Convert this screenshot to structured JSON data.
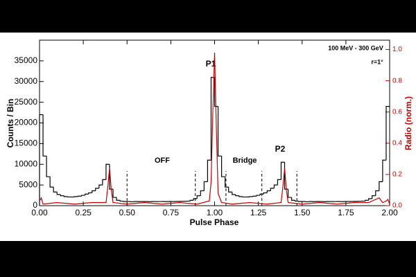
{
  "chart_data": {
    "type": "histogram",
    "x_label": "Pulse Phase",
    "y_label": "Counts / Bin",
    "y2_label": "Radio (norm.)",
    "annotations": [
      "100 MeV - 300 GeV",
      "r=1°",
      "P1",
      "P2",
      "OFF",
      "Bridge"
    ],
    "xlim": [
      0,
      2
    ],
    "xticks": [
      {
        "value": 0,
        "label": "0.00"
      },
      {
        "value": 0.25,
        "label": "0.25"
      },
      {
        "value": 0.5,
        "label": "0.50"
      },
      {
        "value": 0.75,
        "label": "0.75"
      },
      {
        "value": 1,
        "label": "1.00"
      },
      {
        "value": 1.25,
        "label": "1.25"
      },
      {
        "value": 1.5,
        "label": "1.50"
      },
      {
        "value": 1.75,
        "label": "1.75"
      },
      {
        "value": 2,
        "label": "2.00"
      }
    ],
    "ylim": [
      0,
      40000
    ],
    "yticks": [
      0,
      5000,
      10000,
      15000,
      20000,
      25000,
      30000,
      35000
    ],
    "y2lim": [
      0,
      1.06
    ],
    "y2ticks": [
      {
        "value": 0,
        "label": "0.0"
      },
      {
        "value": 0.2,
        "label": "0.2"
      },
      {
        "value": 0.4,
        "label": "0.4"
      },
      {
        "value": 0.6,
        "label": "0.6"
      },
      {
        "value": 0.8,
        "label": "0.8"
      },
      {
        "value": 1,
        "label": "1.0"
      }
    ],
    "boundaries": [
      0.5,
      0.89,
      1.065,
      1.27,
      1.47
    ],
    "bins": [
      0,
      0.02,
      0.04,
      0.06,
      0.08,
      0.1,
      0.12,
      0.14,
      0.16,
      0.18,
      0.2,
      0.22,
      0.24,
      0.26,
      0.28,
      0.3,
      0.32,
      0.34,
      0.36,
      0.38,
      0.4,
      0.42,
      0.44,
      0.46,
      0.48,
      0.5,
      0.52,
      0.54,
      0.56,
      0.58,
      0.6,
      0.62,
      0.64,
      0.66,
      0.68,
      0.7,
      0.72,
      0.74,
      0.76,
      0.78,
      0.8,
      0.82,
      0.84,
      0.86,
      0.88,
      0.9,
      0.92,
      0.94,
      0.96,
      0.98,
      1,
      1.02,
      1.04,
      1.06,
      1.08,
      1.1,
      1.12,
      1.14,
      1.16,
      1.18,
      1.2,
      1.22,
      1.24,
      1.26,
      1.28,
      1.3,
      1.32,
      1.34,
      1.36,
      1.38,
      1.4,
      1.42,
      1.44,
      1.46,
      1.48,
      1.5,
      1.52,
      1.54,
      1.56,
      1.58,
      1.6,
      1.62,
      1.64,
      1.66,
      1.68,
      1.7,
      1.72,
      1.74,
      1.76,
      1.78,
      1.8,
      1.82,
      1.84,
      1.86,
      1.88,
      1.9,
      1.92,
      1.94,
      1.96,
      1.98,
      2
    ],
    "series": [
      {
        "type": "histogram",
        "color": "#000000",
        "values": [
          22000,
          12000,
          7000,
          4500,
          3300,
          2700,
          2400,
          2200,
          2100,
          2100,
          2200,
          2300,
          2500,
          2800,
          3100,
          3600,
          4200,
          5000,
          6300,
          10000,
          4000,
          2000,
          1300,
          1100,
          1000,
          1000,
          950,
          1000,
          980,
          1000,
          1000,
          960,
          1000,
          1000,
          990,
          1000,
          980,
          1000,
          1000,
          1020,
          1050,
          1080,
          1100,
          1300,
          1700,
          2400,
          3600,
          5800,
          11000,
          31000,
          24000,
          12000,
          7000,
          4500,
          3300,
          2700,
          2400,
          2200,
          2100,
          2100,
          2200,
          2300,
          2500,
          2800,
          3100,
          3600,
          4200,
          5000,
          6300,
          10500,
          4000,
          2000,
          1300,
          1100,
          1000,
          1000,
          950,
          1000,
          980,
          1000,
          1000,
          960,
          1000,
          1000,
          990,
          1000,
          980,
          1000,
          1000,
          1020,
          1050,
          1080,
          1100,
          1300,
          1700,
          2400,
          3600,
          5800,
          11000,
          24000
        ]
      },
      {
        "type": "line",
        "axis": "y2",
        "color": "#c00000",
        "x": [
          0,
          0.01,
          0.02,
          0.1,
          0.2,
          0.3,
          0.38,
          0.39,
          0.4,
          0.41,
          0.42,
          0.5,
          0.6,
          0.7,
          0.8,
          0.9,
          0.97,
          0.98,
          0.99,
          1,
          1.01,
          1.02,
          1.04,
          1.1,
          1.2,
          1.3,
          1.38,
          1.39,
          1.4,
          1.41,
          1.42,
          1.5,
          1.6,
          1.7,
          1.8,
          1.88,
          1.92,
          1.94,
          1.96,
          1.98,
          1.99,
          2
        ],
        "values": [
          0.03,
          0.05,
          0.01,
          0.02,
          0.01,
          0.02,
          0.02,
          0.12,
          0.24,
          0.1,
          0.02,
          0.01,
          0.02,
          0.01,
          0.02,
          0.01,
          0.03,
          0.15,
          0.6,
          0.98,
          0.5,
          0.08,
          0.02,
          0.01,
          0.02,
          0.01,
          0.02,
          0.12,
          0.24,
          0.1,
          0.02,
          0.01,
          0.02,
          0.01,
          0.02,
          0.02,
          0.04,
          0.05,
          0.02,
          0.03,
          0.04,
          0.01
        ]
      }
    ]
  }
}
